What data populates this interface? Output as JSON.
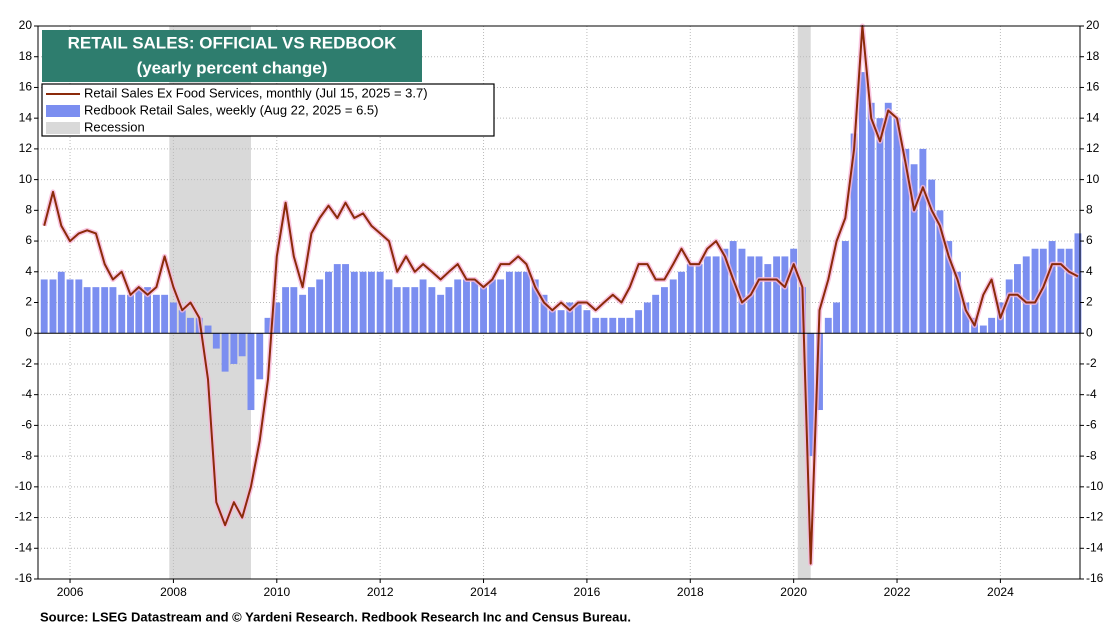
{
  "chart_data": {
    "type": "line_bar",
    "title": "RETAIL SALES: OFFICIAL VS REDBOOK",
    "subtitle": "(yearly percent change)",
    "source": "Source: LSEG Datastream and © Yardeni Research. Redbook Research Inc and Census Bureau.",
    "x": [
      2005.5,
      2005.67,
      2005.83,
      2006,
      2006.17,
      2006.33,
      2006.5,
      2006.67,
      2006.83,
      2007,
      2007.17,
      2007.33,
      2007.5,
      2007.67,
      2007.83,
      2008,
      2008.17,
      2008.33,
      2008.5,
      2008.67,
      2008.83,
      2009,
      2009.17,
      2009.33,
      2009.5,
      2009.67,
      2009.83,
      2010,
      2010.17,
      2010.33,
      2010.5,
      2010.67,
      2010.83,
      2011,
      2011.17,
      2011.33,
      2011.5,
      2011.67,
      2011.83,
      2012,
      2012.17,
      2012.33,
      2012.5,
      2012.67,
      2012.83,
      2013,
      2013.17,
      2013.33,
      2013.5,
      2013.67,
      2013.83,
      2014,
      2014.17,
      2014.33,
      2014.5,
      2014.67,
      2014.83,
      2015,
      2015.17,
      2015.33,
      2015.5,
      2015.67,
      2015.83,
      2016,
      2016.17,
      2016.33,
      2016.5,
      2016.67,
      2016.83,
      2017,
      2017.17,
      2017.33,
      2017.5,
      2017.67,
      2017.83,
      2018,
      2018.17,
      2018.33,
      2018.5,
      2018.67,
      2018.83,
      2019,
      2019.17,
      2019.33,
      2019.5,
      2019.67,
      2019.83,
      2020,
      2020.17,
      2020.33,
      2020.5,
      2020.67,
      2020.83,
      2021,
      2021.17,
      2021.33,
      2021.5,
      2021.67,
      2021.83,
      2022,
      2022.17,
      2022.33,
      2022.5,
      2022.67,
      2022.83,
      2023,
      2023.17,
      2023.33,
      2023.5,
      2023.67,
      2023.83,
      2024,
      2024.17,
      2024.33,
      2024.5,
      2024.67,
      2024.83,
      2025,
      2025.17,
      2025.33,
      2025.5
    ],
    "series": [
      {
        "name": "Redbook Retail Sales, weekly (Aug 22, 2025 = 6.5)",
        "kind": "bar",
        "color": "#7b8ef0",
        "values": [
          3.5,
          3.5,
          4,
          3.5,
          3.5,
          3,
          3,
          3,
          3,
          2.5,
          2.5,
          3,
          3,
          2.5,
          2.5,
          2,
          1.5,
          1,
          1,
          0.5,
          -1,
          -2.5,
          -2,
          -1.5,
          -5,
          -3,
          1,
          2,
          3,
          3,
          2.5,
          3,
          3.5,
          4,
          4.5,
          4.5,
          4,
          4,
          4,
          4,
          3.5,
          3,
          3,
          3,
          3.5,
          3,
          2.5,
          3,
          3.5,
          3.5,
          3.5,
          3,
          3.5,
          3.5,
          4,
          4,
          4,
          3.5,
          2.5,
          1.5,
          1.5,
          2,
          2,
          1.5,
          1,
          1,
          1,
          1,
          1,
          1.5,
          2,
          2.5,
          3,
          3.5,
          4,
          4.5,
          4.5,
          5,
          5,
          5.5,
          6,
          5.5,
          5,
          5,
          4.5,
          5,
          5,
          5.5,
          3,
          -8,
          -5,
          1,
          2,
          6,
          13,
          17,
          15,
          14,
          15,
          14,
          12,
          11,
          12,
          10,
          8,
          6,
          4,
          2,
          1,
          0.5,
          1,
          2,
          3.5,
          4.5,
          5,
          5.5,
          5.5,
          6,
          5.5,
          5.5,
          6.5
        ]
      },
      {
        "name": "Retail Sales Ex Food Services, monthly (Jul 15, 2025 = 3.7)",
        "kind": "line",
        "color": "#8b2a0a",
        "values": [
          7,
          9.2,
          7,
          6,
          6.5,
          6.7,
          6.5,
          4.5,
          3.5,
          4,
          2.5,
          3,
          2.5,
          3,
          5,
          3,
          1.5,
          2,
          1,
          -3,
          -11,
          -12.5,
          -11,
          -12,
          -10,
          -7,
          -3,
          5,
          8.5,
          5,
          3,
          6.5,
          7.5,
          8.3,
          7.5,
          8.5,
          7.5,
          7.8,
          7,
          6.5,
          6,
          4,
          5,
          4,
          4.5,
          4,
          3.5,
          4,
          4.5,
          3.5,
          3.5,
          3,
          3.5,
          4.5,
          4.5,
          5,
          4.5,
          3,
          2,
          1.5,
          2,
          1.5,
          2,
          2,
          1.5,
          2,
          2.5,
          2,
          3,
          4.5,
          4.5,
          3.5,
          3.5,
          4.5,
          5.5,
          4.5,
          4.5,
          5.5,
          6,
          5,
          3.5,
          2,
          2.5,
          3.5,
          3.5,
          3.5,
          3,
          4.5,
          3,
          -15,
          1.5,
          3.5,
          6,
          7.5,
          12,
          20,
          14,
          12.5,
          14.5,
          14,
          11,
          8,
          9.5,
          8,
          7,
          5,
          3.5,
          1.5,
          0.5,
          2.5,
          3.5,
          1,
          2.5,
          2.5,
          2,
          2,
          3,
          4.5,
          4.5,
          4,
          3.7
        ]
      }
    ],
    "recession_label": "Recession",
    "recessions": [
      [
        2007.92,
        2009.5
      ],
      [
        2020.08,
        2020.33
      ]
    ],
    "recession_color": "#d9d9d9",
    "xlim": [
      2005.38,
      2025.54
    ],
    "xticks": [
      2006,
      2008,
      2010,
      2012,
      2014,
      2016,
      2018,
      2020,
      2022,
      2024
    ],
    "ylim": [
      -16,
      20
    ],
    "yticks": [
      -16,
      -14,
      -12,
      -10,
      -8,
      -6,
      -4,
      -2,
      0,
      2,
      4,
      6,
      8,
      10,
      12,
      14,
      16,
      18,
      20
    ],
    "grid": true
  }
}
